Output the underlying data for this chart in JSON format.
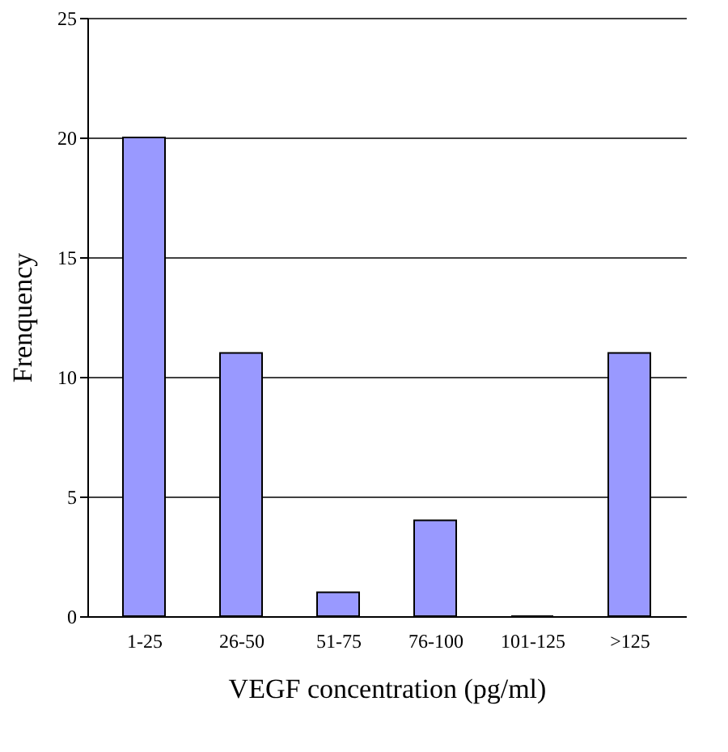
{
  "chart_data": {
    "type": "bar",
    "xlabel": "VEGF concentration (pg/ml)",
    "ylabel": "Frenquency",
    "categories": [
      "1-25",
      "26-50",
      "51-75",
      "76-100",
      "101-125",
      ">125"
    ],
    "values": [
      20,
      11,
      1,
      4,
      0,
      11
    ],
    "color": "#9999ff",
    "ylim": [
      0,
      25
    ],
    "yticks": [
      0,
      5,
      10,
      15,
      20,
      25
    ],
    "grid": "y"
  }
}
